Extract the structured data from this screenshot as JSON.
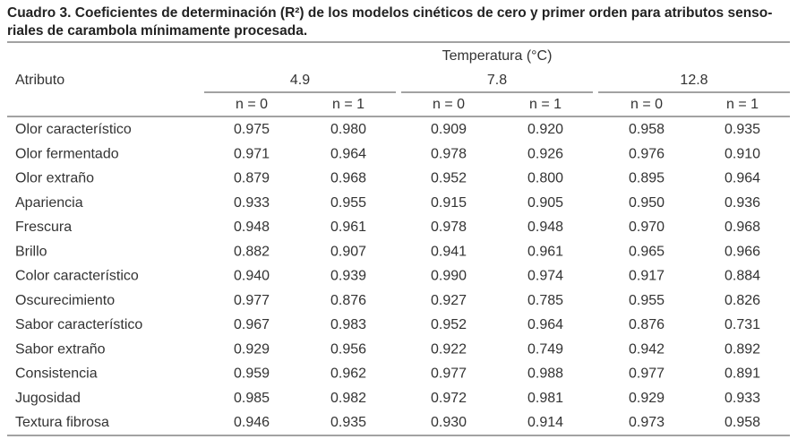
{
  "title_lines": [
    "Cuadro 3. Coeficientes de determinación (R²) de los modelos cinéticos de cero y primer orden para atributos senso-",
    "riales de carambola mínimamente procesada."
  ],
  "table": {
    "header": {
      "group_label": "Temperatura (°C)",
      "row_label": "Atributo",
      "temperatures": [
        "4.9",
        "7.8",
        "12.8"
      ],
      "orders": [
        "n = 0",
        "n = 1",
        "n = 0",
        "n = 1",
        "n = 0",
        "n = 1"
      ]
    },
    "rows": [
      {
        "attribute": "Olor característico",
        "values": [
          "0.975",
          "0.980",
          "0.909",
          "0.920",
          "0.958",
          "0.935"
        ]
      },
      {
        "attribute": "Olor fermentado",
        "values": [
          "0.971",
          "0.964",
          "0.978",
          "0.926",
          "0.976",
          "0.910"
        ]
      },
      {
        "attribute": "Olor extraño",
        "values": [
          "0.879",
          "0.968",
          "0.952",
          "0.800",
          "0.895",
          "0.964"
        ]
      },
      {
        "attribute": "Apariencia",
        "values": [
          "0.933",
          "0.955",
          "0.915",
          "0.905",
          "0.950",
          "0.936"
        ]
      },
      {
        "attribute": "Frescura",
        "values": [
          "0.948",
          "0.961",
          "0.978",
          "0.948",
          "0.970",
          "0.968"
        ]
      },
      {
        "attribute": "Brillo",
        "values": [
          "0.882",
          "0.907",
          "0.941",
          "0.961",
          "0.965",
          "0.966"
        ]
      },
      {
        "attribute": "Color característico",
        "values": [
          "0.940",
          "0.939",
          "0.990",
          "0.974",
          "0.917",
          "0.884"
        ]
      },
      {
        "attribute": "Oscurecimiento",
        "values": [
          "0.977",
          "0.876",
          "0.927",
          "0.785",
          "0.955",
          "0.826"
        ]
      },
      {
        "attribute": "Sabor característico",
        "values": [
          "0.967",
          "0.983",
          "0.952",
          "0.964",
          "0.876",
          "0.731"
        ]
      },
      {
        "attribute": "Sabor extraño",
        "values": [
          "0.929",
          "0.956",
          "0.922",
          "0.749",
          "0.942",
          "0.892"
        ]
      },
      {
        "attribute": "Consistencia",
        "values": [
          "0.959",
          "0.962",
          "0.977",
          "0.988",
          "0.977",
          "0.891"
        ]
      },
      {
        "attribute": "Jugosidad",
        "values": [
          "0.985",
          "0.982",
          "0.972",
          "0.981",
          "0.929",
          "0.933"
        ]
      },
      {
        "attribute": "Textura fibrosa",
        "values": [
          "0.946",
          "0.935",
          "0.930",
          "0.914",
          "0.973",
          "0.958"
        ]
      }
    ]
  }
}
